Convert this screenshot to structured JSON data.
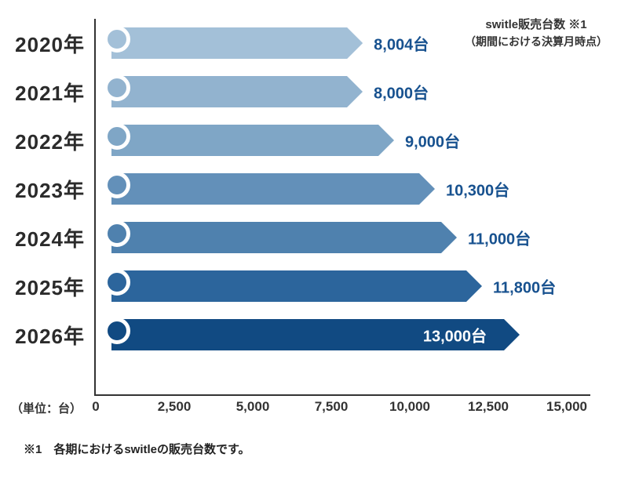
{
  "note": {
    "line1": "switle販売台数 ※1",
    "line2": "（期間における決算月時点）"
  },
  "unit_label": "（単位：台）",
  "footnote": "※1　各期におけるswitleの販売台数です。",
  "colors": {
    "value_label": "#17518f",
    "value_label_inside": "#ffffff",
    "axis": "#333333",
    "year_label": "#2b2b2b"
  },
  "chart_data": {
    "type": "bar",
    "orientation": "horizontal",
    "title": "switle販売台数",
    "categories": [
      "2020年",
      "2021年",
      "2022年",
      "2023年",
      "2024年",
      "2025年",
      "2026年"
    ],
    "values": [
      8004,
      8000,
      9000,
      10300,
      11000,
      11800,
      13000
    ],
    "value_labels": [
      "8,004台",
      "8,000台",
      "9,000台",
      "10,300台",
      "11,000台",
      "11,800台",
      "13,000台"
    ],
    "bar_colors": [
      "#a3c0d8",
      "#92b3cf",
      "#7fa6c6",
      "#6390b9",
      "#4f81ae",
      "#2c659c",
      "#114a82"
    ],
    "inside_label_indices": [
      6
    ],
    "xticks": [
      0,
      2500,
      5000,
      7500,
      10000,
      12500,
      15000
    ],
    "xtick_labels": [
      "0",
      "2,500",
      "5,000",
      "7,500",
      "10,000",
      "12,500",
      "15,000"
    ],
    "xlim": [
      0,
      15000
    ],
    "grid": false,
    "legend_position": "top-right-note"
  }
}
